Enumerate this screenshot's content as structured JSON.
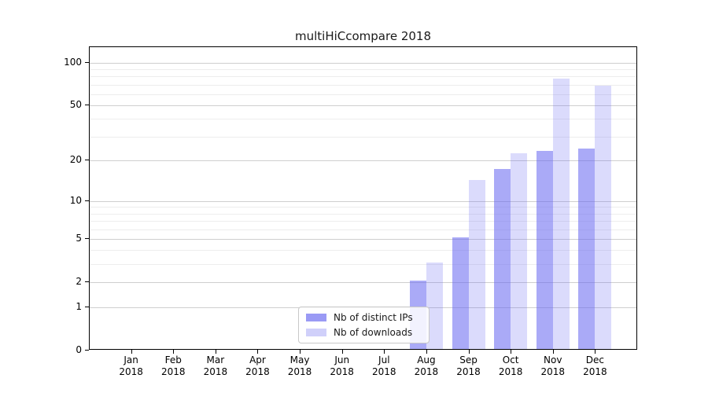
{
  "title": "multiHiCcompare 2018",
  "chart_data": {
    "type": "bar",
    "title": "multiHiCcompare 2018",
    "categories": [
      "Jan 2018",
      "Feb 2018",
      "Mar 2018",
      "Apr 2018",
      "May 2018",
      "Jun 2018",
      "Jul 2018",
      "Aug 2018",
      "Sep 2018",
      "Oct 2018",
      "Nov 2018",
      "Dec 2018"
    ],
    "series": [
      {
        "name": "Nb of distinct IPs",
        "color": "rgba(100,100,240,0.55)",
        "values": [
          0,
          0,
          0,
          0,
          0,
          0,
          0,
          2,
          5,
          17,
          23,
          24
        ]
      },
      {
        "name": "Nb of downloads",
        "color": "rgba(100,100,240,0.23)",
        "values": [
          0,
          0,
          0,
          0,
          0,
          0,
          0,
          3,
          14,
          22,
          75,
          67
        ]
      }
    ],
    "yaxis": {
      "scale": "log1p",
      "major_ticks": [
        0,
        1,
        2,
        5,
        10,
        20,
        50,
        100
      ],
      "minor_ticks": [
        3,
        4,
        6,
        7,
        8,
        9,
        30,
        40,
        60,
        70,
        80,
        90
      ],
      "ylim": [
        0,
        128.6
      ]
    },
    "xlabel": "",
    "ylabel": "",
    "grid": {
      "major_color": "#cfcfcf",
      "minor_color": "#ededed"
    },
    "legend_position": "lower center"
  },
  "legend": {
    "swatch_colors": [
      "rgba(100,100,240,0.65)",
      "rgba(100,100,240,0.30)"
    ]
  }
}
